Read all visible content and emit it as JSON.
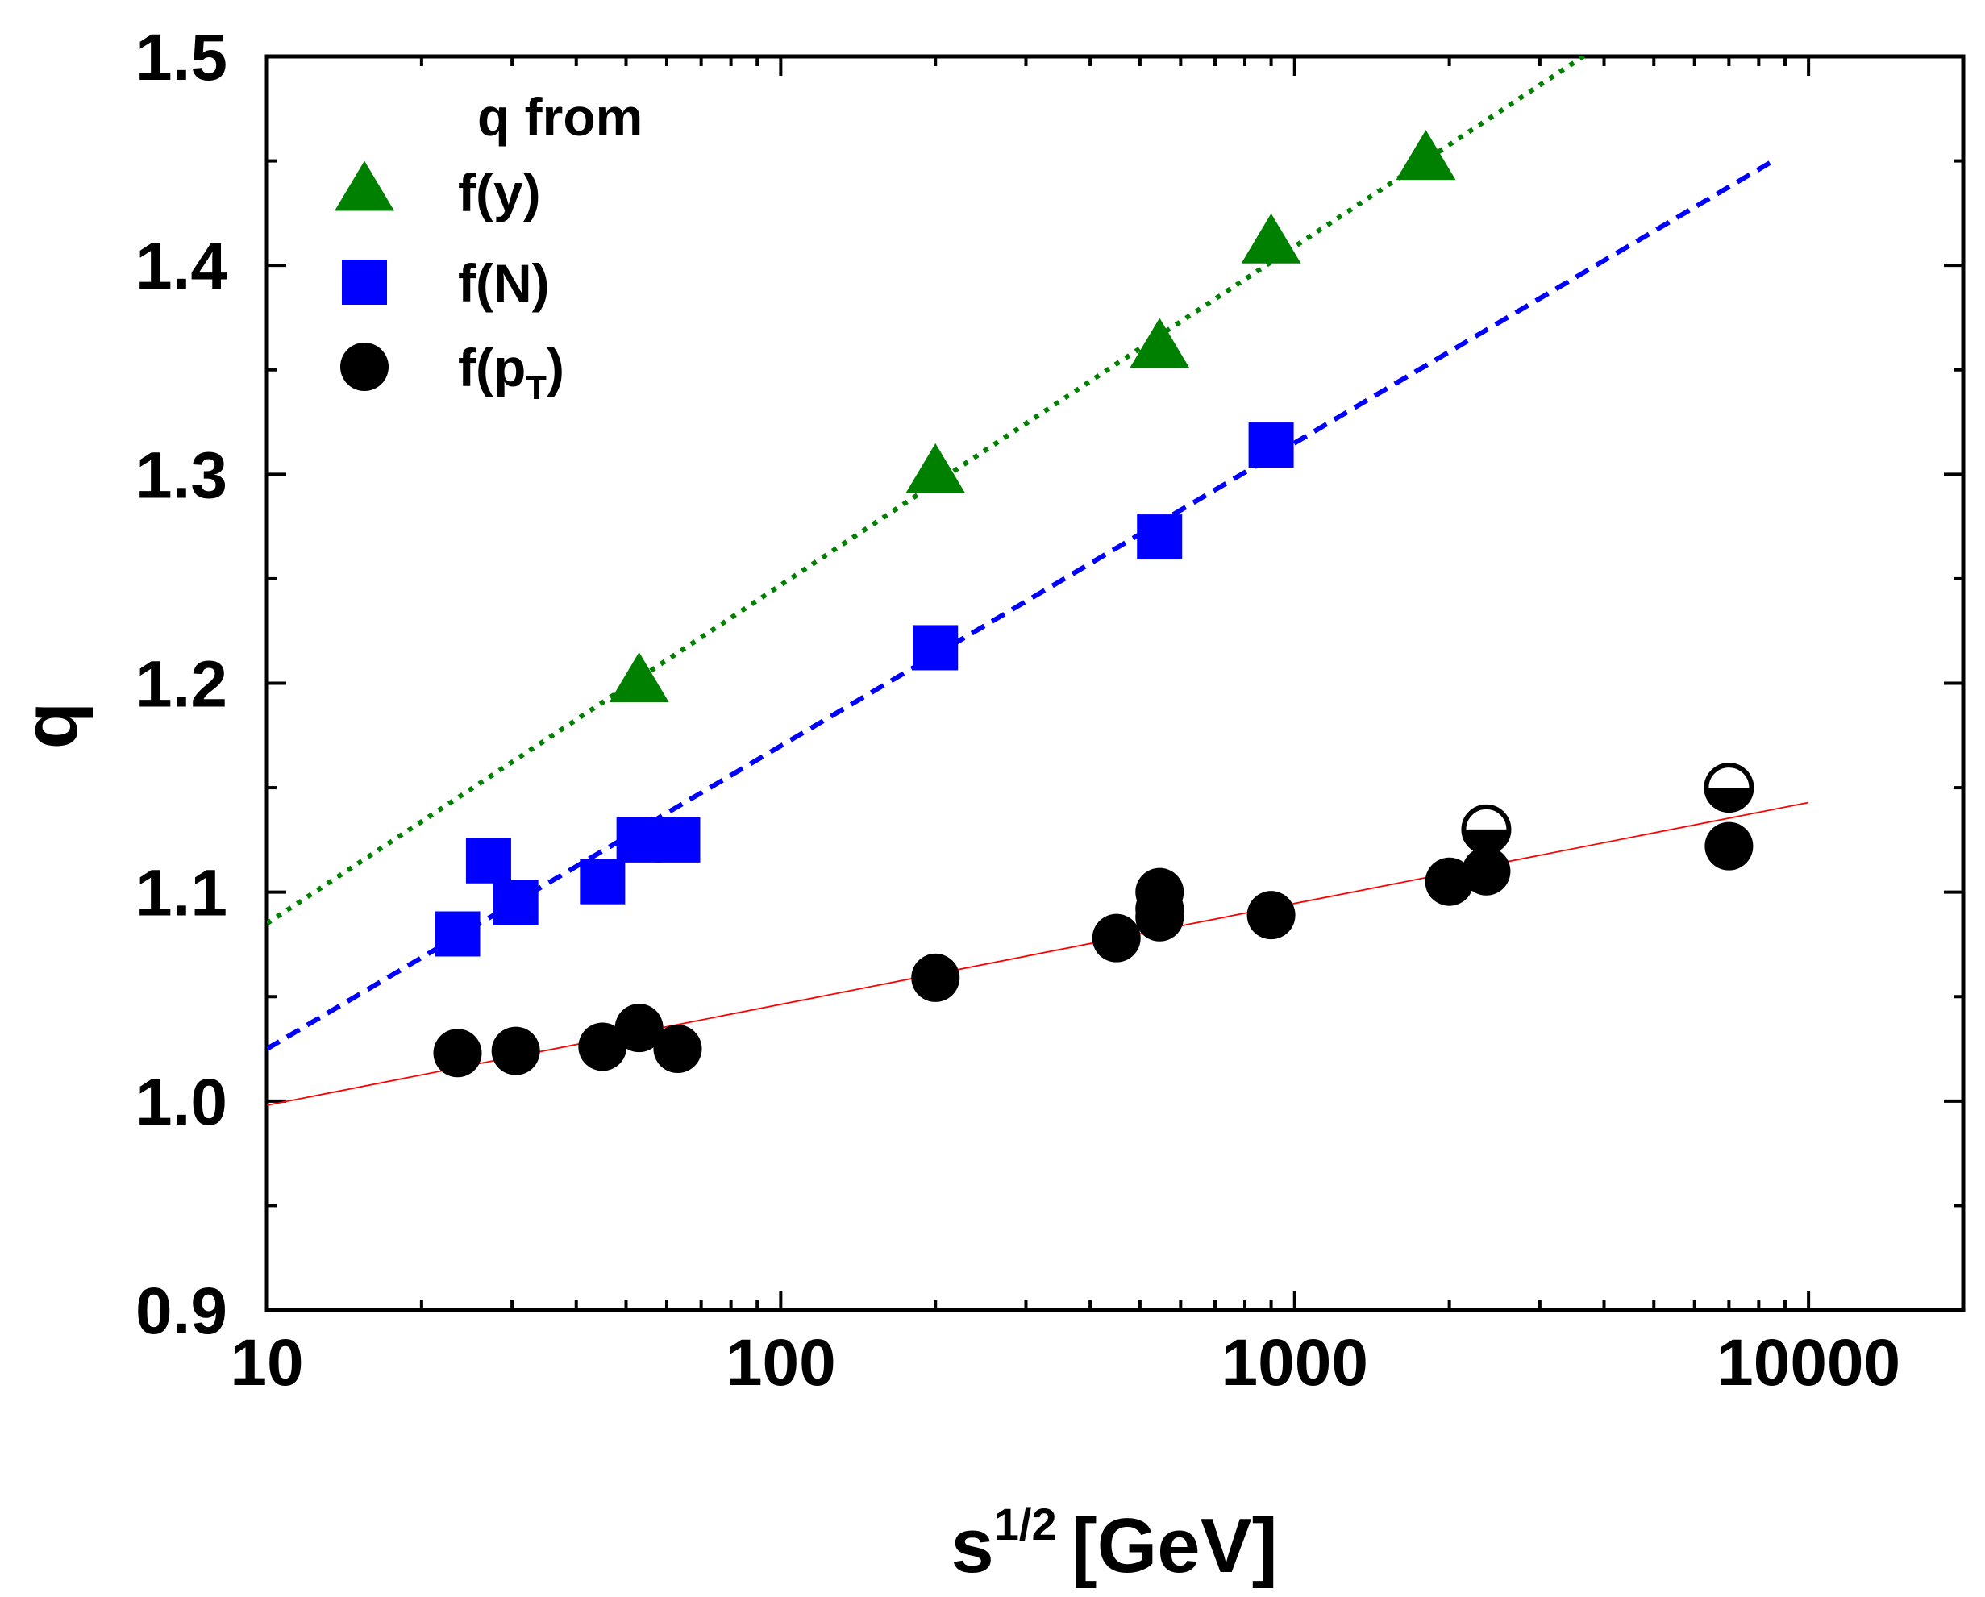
{
  "chart_data": {
    "type": "scatter",
    "xscale": "log",
    "xlim": [
      10,
      20000
    ],
    "ylim": [
      0.9,
      1.5
    ],
    "xlabel": {
      "base": "s",
      "sup": "1/2",
      "unit": "[GeV]"
    },
    "ylabel": "q",
    "x_ticks": [
      10,
      100,
      1000,
      10000
    ],
    "x_tick_labels": [
      "10",
      "100",
      "1000",
      "10000"
    ],
    "y_ticks": [
      0.9,
      1.0,
      1.1,
      1.2,
      1.3,
      1.4,
      1.5
    ],
    "y_tick_labels": [
      "0.9",
      "1.0",
      "1.1",
      "1.2",
      "1.3",
      "1.4",
      "1.5"
    ],
    "legend": {
      "title": "q from",
      "position": "top-left",
      "entries": [
        {
          "series": "fy",
          "text": "f(y)",
          "sub": ""
        },
        {
          "series": "fN",
          "text": "f(N)",
          "sub": ""
        },
        {
          "series": "fpT",
          "text": "f(p",
          "sub": "T",
          "close": ")"
        }
      ]
    },
    "colors": {
      "fy": "#008000",
      "fN": "#0000ff",
      "fpT": "#000000",
      "fit_pT": "#ff0000"
    },
    "series": [
      {
        "id": "fy",
        "name": "f(y)",
        "marker": "triangle",
        "points": [
          [
            53,
            1.2
          ],
          [
            200,
            1.3
          ],
          [
            546,
            1.36
          ],
          [
            900,
            1.41
          ],
          [
            1800,
            1.45
          ]
        ],
        "fit": {
          "style": "dotted",
          "x_range": [
            10,
            4000
          ],
          "q_at_10": 1.085,
          "slope_per_decade": 0.162
        }
      },
      {
        "id": "fN",
        "name": "f(N)",
        "marker": "square",
        "points": [
          [
            23.5,
            1.08
          ],
          [
            27,
            1.115
          ],
          [
            30.5,
            1.095
          ],
          [
            45,
            1.105
          ],
          [
            53,
            1.125
          ],
          [
            63,
            1.125
          ],
          [
            200,
            1.217
          ],
          [
            546,
            1.27
          ],
          [
            900,
            1.314
          ]
        ],
        "fit": {
          "style": "dashed",
          "x_range": [
            10,
            8500
          ],
          "q_at_10": 1.025,
          "slope_per_decade": 0.145
        }
      },
      {
        "id": "fpT",
        "name": "f(pT)",
        "marker": "circle",
        "points": [
          [
            23.5,
            1.023
          ],
          [
            30.5,
            1.024
          ],
          [
            45,
            1.026
          ],
          [
            53,
            1.035
          ],
          [
            63,
            1.025
          ],
          [
            200,
            1.059
          ],
          [
            450,
            1.078
          ],
          [
            546,
            1.088
          ],
          [
            546,
            1.092
          ],
          [
            546,
            1.1
          ],
          [
            900,
            1.089
          ],
          [
            2000,
            1.105
          ],
          [
            2360,
            1.11
          ],
          [
            7000,
            1.122
          ]
        ],
        "half_filled_points": [
          [
            2360,
            1.13
          ],
          [
            7000,
            1.15
          ]
        ],
        "fit": {
          "style": "thin-solid",
          "x_range": [
            10,
            10000
          ],
          "q_at_10": 0.998,
          "slope_per_decade": 0.0483
        }
      }
    ]
  }
}
